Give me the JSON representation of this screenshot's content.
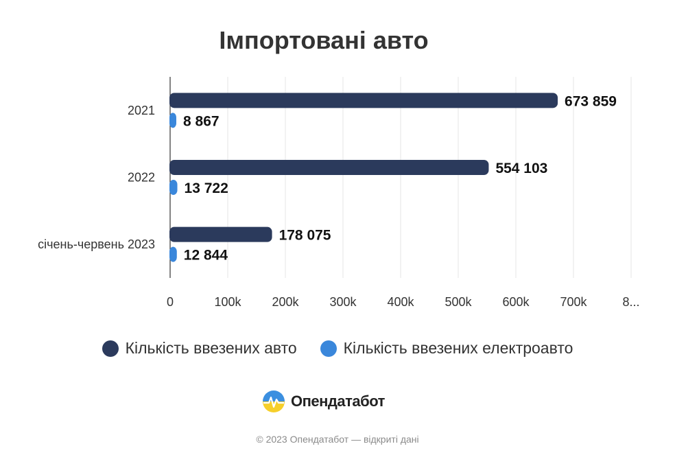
{
  "chart_data": {
    "type": "bar",
    "orientation": "horizontal",
    "title": "Імпортовані авто",
    "categories": [
      "2021",
      "2022",
      "січень-червень 2023"
    ],
    "series": [
      {
        "name": "Кількість ввезених авто",
        "values": [
          673859,
          554103,
          178075
        ],
        "labels": [
          "673 859",
          "554 103",
          "178 075"
        ],
        "color": "#2b3a5c"
      },
      {
        "name": "Кількість ввезених електроавто",
        "values": [
          8867,
          13722,
          12844
        ],
        "labels": [
          "8 867",
          "13 722",
          "12 844"
        ],
        "color": "#3a87db"
      }
    ],
    "x_ticks": [
      "0",
      "100k",
      "200k",
      "300k",
      "400k",
      "500k",
      "600k",
      "700k",
      "8..."
    ],
    "xlim": [
      0,
      800000
    ],
    "grid": true,
    "legend": "bottom"
  },
  "brand": {
    "name": "Опендатабот"
  },
  "footer": {
    "text": "© 2023 Опендатабот — відкриті дані"
  }
}
